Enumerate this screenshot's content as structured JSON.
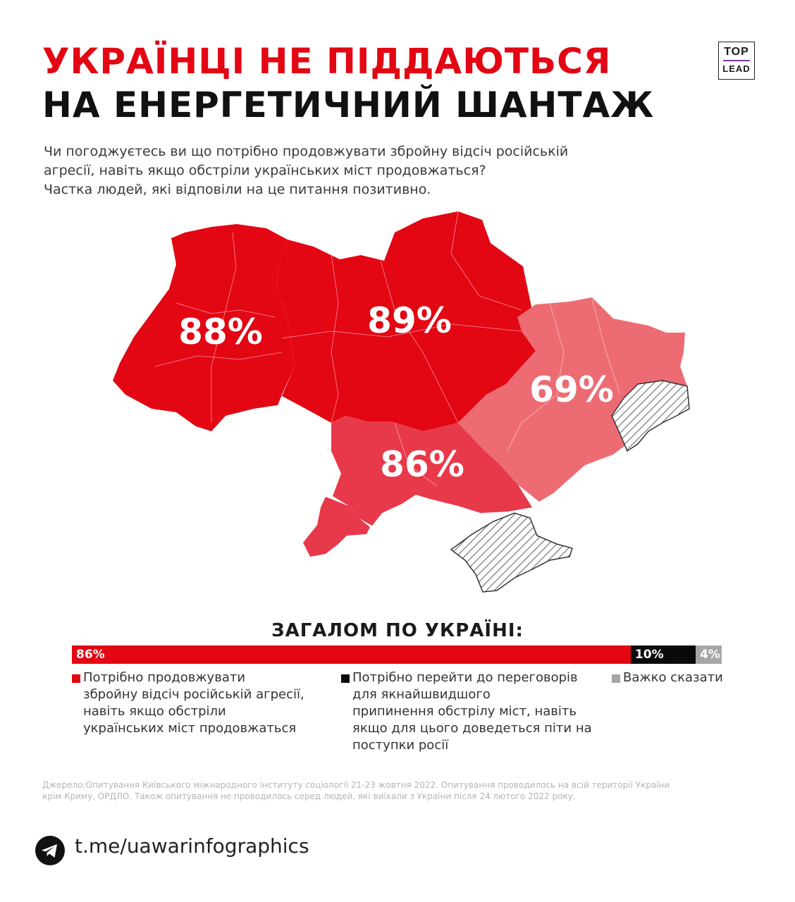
{
  "header": {
    "title_line1": "УКРАЇНЦІ НЕ ПІДДАЮТЬСЯ",
    "title_line2": "НА ЕНЕРГЕТИЧНИЙ ШАНТАЖ",
    "logo_top": "TOP",
    "logo_bottom": "LEAD"
  },
  "question": {
    "line1": "Чи погоджуєтесь ви що потрібно продовжувати збройну відсіч російській",
    "line2": "агресії, навіть якщо обстріли українських міст продовжаться?",
    "line3": "Частка людей, які відповіли на це питання позитивно."
  },
  "chart_data": [
    {
      "type": "map",
      "regions": [
        {
          "label": "88%",
          "value": 88,
          "color": "#e30613"
        },
        {
          "label": "89%",
          "value": 89,
          "color": "#e30613"
        },
        {
          "label": "86%",
          "value": 86,
          "color": "#e8394a"
        },
        {
          "label": "69%",
          "value": 69,
          "color": "#ed6c74"
        }
      ],
      "no_data_pattern": "diagonal hatch"
    },
    {
      "type": "bar",
      "stacked": true,
      "orientation": "horizontal",
      "title": "ЗАГАЛОМ ПО УКРАЇНІ:",
      "series": [
        {
          "name": "Потрібно продовжувати збройну відсіч російській агресії, навіть якщо обстріли українських міст продовжаться",
          "value": 86,
          "label": "86%",
          "color": "#e30613"
        },
        {
          "name": "Потрібно перейти до переговорів для якнайшвидшого припинення обстрілу міст, навіть якщо для цього доведеться піти на поступки росії",
          "value": 10,
          "label": "10%",
          "color": "#0a0a0a"
        },
        {
          "name": "Важко сказати",
          "value": 4,
          "label": "4%",
          "color": "#a6a6a6"
        }
      ]
    }
  ],
  "legend": {
    "item1": "Потрібно продовжувати\nзбройну відсіч російській агресії,\nнавіть якщо обстріли\nукраїнських міст продовжаться",
    "item2": "Потрібно перейти до переговорів\nдля якнайшвидшого\nприпинення обстрілу міст, навіть\nякщо для цього доведеться піти на\nпоступки росії",
    "item3": "Важко сказати"
  },
  "source": "Джерело:Опитування Київського міжнародного інституту соціології 21-23 жовтня 2022. Опитування проводилось на всій території України крім Криму, ОРДЛО. Також опитування не проводилось серед людей, які виїхали з України після 24 лютого 2022 року.",
  "footer": {
    "icon": "telegram-icon",
    "link": "t.me/uawarinfographics"
  }
}
